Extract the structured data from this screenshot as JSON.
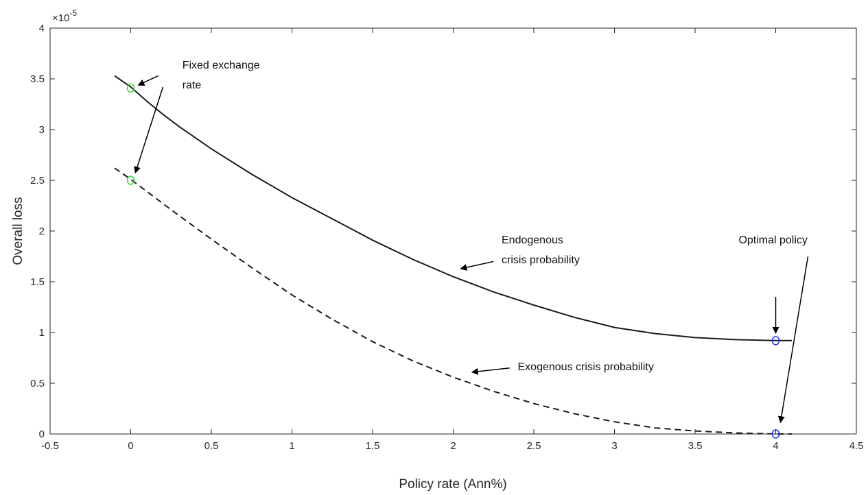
{
  "chart_data": {
    "type": "line",
    "title": "",
    "xlabel": "Policy rate (Ann%)",
    "ylabel": "Overall loss",
    "y_exponent_label": "×10",
    "y_exponent_power": "-5",
    "xlim": [
      -0.5,
      4.5
    ],
    "ylim": [
      0,
      4
    ],
    "grid": false,
    "x_ticks": [
      -0.5,
      0,
      0.5,
      1,
      1.5,
      2,
      2.5,
      3,
      3.5,
      4,
      4.5
    ],
    "x_tick_labels": [
      "-0.5",
      "0",
      "0.5",
      "1",
      "1.5",
      "2",
      "2.5",
      "3",
      "3.5",
      "4",
      "4.5"
    ],
    "y_ticks": [
      0,
      0.5,
      1,
      1.5,
      2,
      2.5,
      3,
      3.5,
      4
    ],
    "y_tick_labels": [
      "0",
      "0.5",
      "1",
      "1.5",
      "2",
      "2.5",
      "3",
      "3.5",
      "4"
    ],
    "series": [
      {
        "name": "Endogenous crisis probability",
        "style": "solid",
        "color": "#1a1a1a",
        "x": [
          -0.1,
          0.0,
          0.1,
          0.2,
          0.3,
          0.5,
          0.75,
          1.0,
          1.25,
          1.5,
          1.75,
          2.0,
          2.25,
          2.5,
          2.75,
          3.0,
          3.25,
          3.5,
          3.75,
          4.0,
          4.1
        ],
        "y": [
          3.53,
          3.42,
          3.28,
          3.15,
          3.03,
          2.81,
          2.56,
          2.33,
          2.12,
          1.91,
          1.72,
          1.55,
          1.4,
          1.27,
          1.15,
          1.05,
          0.99,
          0.95,
          0.93,
          0.92,
          0.92
        ]
      },
      {
        "name": "Exogenous crisis probability",
        "style": "dashed",
        "color": "#1a1a1a",
        "x": [
          -0.1,
          0.0,
          0.25,
          0.5,
          0.75,
          1.0,
          1.25,
          1.5,
          1.75,
          2.0,
          2.25,
          2.5,
          2.75,
          3.0,
          3.25,
          3.5,
          3.75,
          4.0,
          4.1
        ],
        "y": [
          2.62,
          2.51,
          2.21,
          1.92,
          1.64,
          1.37,
          1.13,
          0.91,
          0.72,
          0.56,
          0.42,
          0.3,
          0.2,
          0.12,
          0.06,
          0.03,
          0.01,
          0.0,
          0.0
        ]
      }
    ],
    "markers": [
      {
        "x": 0,
        "y": 3.41,
        "color": "#33dd33"
      },
      {
        "x": 0,
        "y": 2.5,
        "color": "#33dd33"
      },
      {
        "x": 4,
        "y": 0.92,
        "color": "#2233ee"
      },
      {
        "x": 4,
        "y": 0.0,
        "color": "#2233ee"
      }
    ],
    "annotations": [
      {
        "lines": [
          "Fixed exchange",
          "rate"
        ],
        "text_x": 0.32,
        "text_y": 3.6,
        "arrows": [
          {
            "from": [
              0.17,
              3.53
            ],
            "to": [
              0.05,
              3.44
            ]
          },
          {
            "from": [
              0.2,
              3.42
            ],
            "to": [
              0.03,
              2.58
            ]
          }
        ]
      },
      {
        "lines": [
          "Endogenous",
          "crisis probability"
        ],
        "text_x": 2.3,
        "text_y": 1.88,
        "arrows": [
          {
            "from": [
              2.25,
              1.7
            ],
            "to": [
              2.05,
              1.63
            ]
          }
        ]
      },
      {
        "lines": [
          "Exogenous crisis probability"
        ],
        "text_x": 2.4,
        "text_y": 0.63,
        "arrows": [
          {
            "from": [
              2.35,
              0.65
            ],
            "to": [
              2.12,
              0.61
            ]
          }
        ]
      },
      {
        "lines": [
          "Optimal policy"
        ],
        "text_x": 3.77,
        "text_y": 1.88,
        "arrows": [
          {
            "from": [
              4.0,
              1.35
            ],
            "to": [
              4.0,
              1.0
            ]
          },
          {
            "from": [
              4.2,
              1.75
            ],
            "to": [
              4.03,
              0.12
            ]
          }
        ]
      }
    ]
  }
}
